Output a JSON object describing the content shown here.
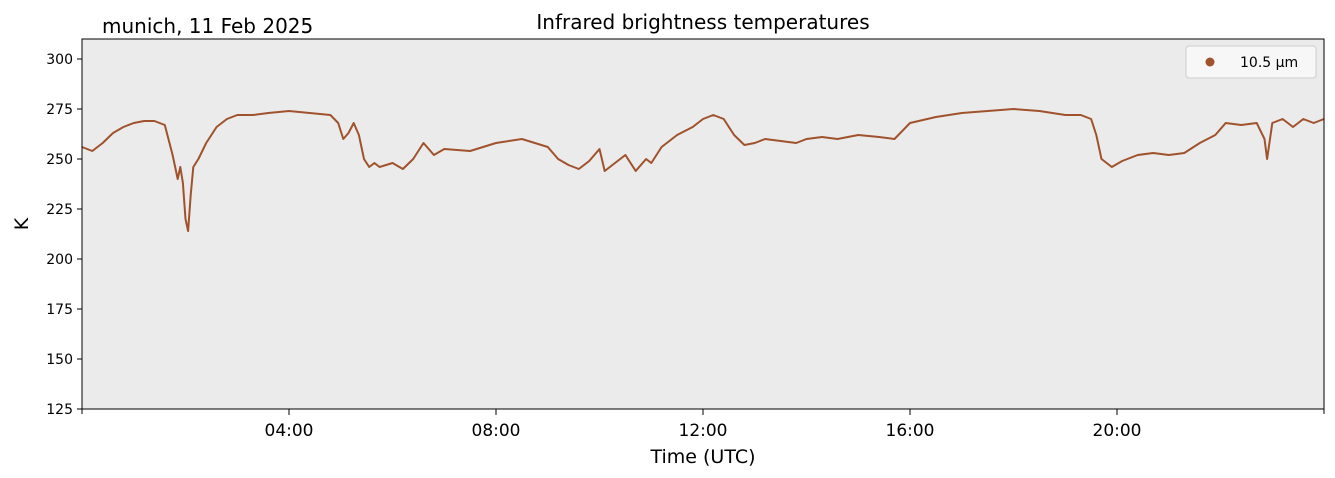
{
  "chart_data": {
    "type": "line",
    "location_date": "munich, 11 Feb 2025",
    "title": "Infrared brightness temperatures",
    "xlabel": "Time (UTC)",
    "ylabel": "K",
    "xlim_hours": [
      0,
      24
    ],
    "ylim": [
      125,
      310
    ],
    "x_ticks": [
      {
        "hour": 4,
        "label": "04:00"
      },
      {
        "hour": 8,
        "label": "08:00"
      },
      {
        "hour": 12,
        "label": "12:00"
      },
      {
        "hour": 16,
        "label": "16:00"
      },
      {
        "hour": 20,
        "label": "20:00"
      }
    ],
    "y_ticks": [
      125,
      150,
      175,
      200,
      225,
      250,
      275,
      300
    ],
    "grid": false,
    "legend_position": "top-right",
    "colors": {
      "series": "#a0522d",
      "plot_background": "#ebebeb"
    },
    "series": [
      {
        "name": "10.5 µm",
        "x_hours": [
          0.0,
          0.2,
          0.4,
          0.6,
          0.8,
          1.0,
          1.2,
          1.4,
          1.6,
          1.75,
          1.85,
          1.9,
          1.95,
          2.0,
          2.05,
          2.1,
          2.15,
          2.25,
          2.4,
          2.6,
          2.8,
          3.0,
          3.3,
          3.6,
          4.0,
          4.4,
          4.8,
          4.95,
          5.05,
          5.15,
          5.25,
          5.35,
          5.45,
          5.55,
          5.65,
          5.75,
          6.0,
          6.2,
          6.4,
          6.6,
          6.8,
          7.0,
          7.5,
          8.0,
          8.5,
          9.0,
          9.2,
          9.4,
          9.6,
          9.8,
          10.0,
          10.1,
          10.3,
          10.5,
          10.7,
          10.9,
          11.0,
          11.2,
          11.5,
          11.8,
          12.0,
          12.2,
          12.4,
          12.6,
          12.8,
          13.0,
          13.2,
          13.5,
          13.8,
          14.0,
          14.3,
          14.6,
          15.0,
          15.4,
          15.7,
          16.0,
          16.5,
          17.0,
          17.5,
          18.0,
          18.5,
          19.0,
          19.3,
          19.5,
          19.6,
          19.7,
          19.9,
          20.1,
          20.4,
          20.7,
          21.0,
          21.3,
          21.6,
          21.9,
          22.1,
          22.4,
          22.7,
          22.85,
          22.9,
          23.0,
          23.2,
          23.4,
          23.6,
          23.8,
          24.0
        ],
        "values": [
          256,
          254,
          258,
          263,
          266,
          268,
          269,
          269,
          267,
          252,
          240,
          246,
          238,
          220,
          214,
          232,
          246,
          250,
          258,
          266,
          270,
          272,
          272,
          273,
          274,
          273,
          272,
          268,
          260,
          263,
          268,
          262,
          250,
          246,
          248,
          246,
          248,
          245,
          250,
          258,
          252,
          255,
          254,
          258,
          260,
          256,
          250,
          247,
          245,
          249,
          255,
          244,
          248,
          252,
          244,
          250,
          248,
          256,
          262,
          266,
          270,
          272,
          270,
          262,
          257,
          258,
          260,
          259,
          258,
          260,
          261,
          260,
          262,
          261,
          260,
          268,
          271,
          273,
          274,
          275,
          274,
          272,
          272,
          270,
          262,
          250,
          246,
          249,
          252,
          253,
          252,
          253,
          258,
          262,
          268,
          267,
          268,
          260,
          250,
          268,
          270,
          266,
          270,
          268,
          270
        ]
      }
    ]
  }
}
